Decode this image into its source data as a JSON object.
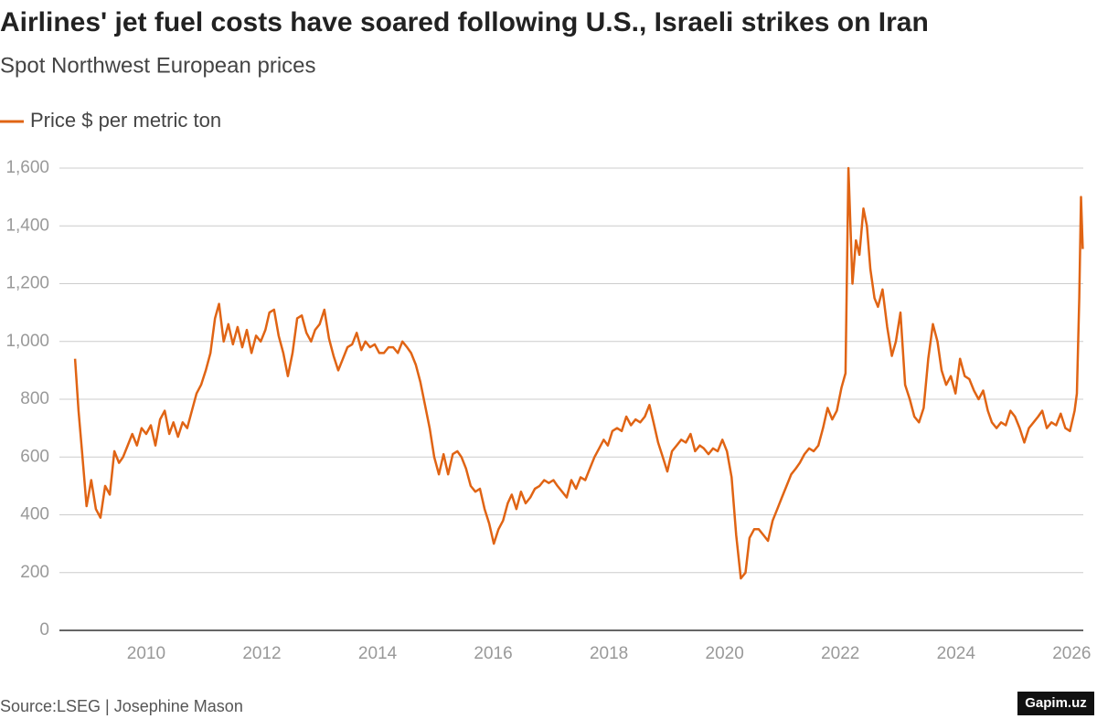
{
  "chart_data": {
    "type": "line",
    "title": "Airlines' jet fuel costs have soared following U.S., Israeli strikes on Iran",
    "subtitle": "Spot Northwest European prices",
    "source": "Source:LSEG | Josephine Mason",
    "watermark": "Gapim.uz",
    "grid": true,
    "legend": "top-left",
    "xlim": [
      2008.5,
      2026.2
    ],
    "xticks": [
      2010,
      2012,
      2014,
      2016,
      2018,
      2020,
      2022,
      2024,
      2026
    ],
    "ylim": [
      0,
      1600
    ],
    "yticks": [
      0,
      200,
      400,
      600,
      800,
      {
        "value": 1000,
        "label": "1,000"
      },
      {
        "value": 1200,
        "label": "1,200"
      },
      {
        "value": 1400,
        "label": "1,400"
      },
      {
        "value": 1600,
        "label": "1,600"
      }
    ],
    "series": [
      {
        "name": "Price $ per metric ton",
        "color": "#e06414",
        "x": [
          2008.77,
          2008.83,
          2008.89,
          2008.97,
          2009.05,
          2009.13,
          2009.21,
          2009.29,
          2009.37,
          2009.45,
          2009.53,
          2009.6,
          2009.68,
          2009.76,
          2009.84,
          2009.92,
          2010.0,
          2010.08,
          2010.16,
          2010.24,
          2010.32,
          2010.4,
          2010.47,
          2010.55,
          2010.63,
          2010.71,
          2010.79,
          2010.87,
          2010.95,
          2011.03,
          2011.11,
          2011.19,
          2011.26,
          2011.34,
          2011.42,
          2011.5,
          2011.58,
          2011.66,
          2011.74,
          2011.82,
          2011.9,
          2011.98,
          2012.06,
          2012.13,
          2012.21,
          2012.29,
          2012.37,
          2012.45,
          2012.53,
          2012.61,
          2012.69,
          2012.77,
          2012.85,
          2012.92,
          2013.0,
          2013.08,
          2013.16,
          2013.24,
          2013.32,
          2013.4,
          2013.48,
          2013.56,
          2013.64,
          2013.72,
          2013.79,
          2013.87,
          2013.95,
          2014.03,
          2014.11,
          2014.19,
          2014.27,
          2014.35,
          2014.43,
          2014.51,
          2014.58,
          2014.66,
          2014.74,
          2014.82,
          2014.9,
          2014.98,
          2015.06,
          2015.14,
          2015.22,
          2015.3,
          2015.38,
          2015.45,
          2015.53,
          2015.61,
          2015.69,
          2015.77,
          2015.85,
          2015.93,
          2016.01,
          2016.09,
          2016.17,
          2016.25,
          2016.32,
          2016.4,
          2016.48,
          2016.56,
          2016.64,
          2016.72,
          2016.8,
          2016.88,
          2016.96,
          2017.04,
          2017.11,
          2017.19,
          2017.27,
          2017.35,
          2017.43,
          2017.51,
          2017.59,
          2017.67,
          2017.75,
          2017.83,
          2017.91,
          2017.98,
          2018.06,
          2018.14,
          2018.22,
          2018.3,
          2018.38,
          2018.46,
          2018.54,
          2018.62,
          2018.7,
          2018.77,
          2018.85,
          2018.93,
          2019.01,
          2019.09,
          2019.17,
          2019.25,
          2019.33,
          2019.41,
          2019.49,
          2019.57,
          2019.64,
          2019.72,
          2019.8,
          2019.88,
          2019.96,
          2020.04,
          2020.12,
          2020.2,
          2020.28,
          2020.36,
          2020.43,
          2020.51,
          2020.59,
          2020.67,
          2020.75,
          2020.83,
          2020.91,
          2020.99,
          2021.07,
          2021.15,
          2021.23,
          2021.3,
          2021.38,
          2021.46,
          2021.54,
          2021.62,
          2021.7,
          2021.78,
          2021.86,
          2021.94,
          2022.02,
          2022.09,
          2022.14,
          2022.21,
          2022.27,
          2022.33,
          2022.4,
          2022.46,
          2022.52,
          2022.59,
          2022.65,
          2022.73,
          2022.81,
          2022.89,
          2022.96,
          2023.04,
          2023.12,
          2023.2,
          2023.28,
          2023.36,
          2023.44,
          2023.52,
          2023.6,
          2023.68,
          2023.75,
          2023.83,
          2023.91,
          2023.99,
          2024.07,
          2024.15,
          2024.23,
          2024.31,
          2024.39,
          2024.47,
          2024.55,
          2024.62,
          2024.7,
          2024.78,
          2024.86,
          2024.94,
          2025.02,
          2025.1,
          2025.18,
          2025.26,
          2025.34,
          2025.42,
          2025.49,
          2025.57,
          2025.65,
          2025.73,
          2025.81,
          2025.89,
          2025.97,
          2026.05,
          2026.09,
          2026.13,
          2026.16,
          2026.19
        ],
        "values": [
          940,
          760,
          620,
          430,
          520,
          420,
          390,
          500,
          470,
          620,
          580,
          600,
          640,
          680,
          640,
          700,
          680,
          710,
          640,
          730,
          760,
          680,
          720,
          670,
          720,
          700,
          760,
          820,
          850,
          900,
          960,
          1080,
          1130,
          1000,
          1060,
          990,
          1050,
          980,
          1040,
          960,
          1020,
          1000,
          1040,
          1100,
          1110,
          1020,
          960,
          880,
          960,
          1080,
          1090,
          1030,
          1000,
          1040,
          1060,
          1110,
          1010,
          950,
          900,
          940,
          980,
          990,
          1030,
          970,
          1000,
          980,
          990,
          960,
          960,
          980,
          980,
          960,
          1000,
          980,
          960,
          920,
          860,
          780,
          700,
          600,
          540,
          610,
          540,
          610,
          620,
          600,
          560,
          500,
          480,
          490,
          420,
          370,
          300,
          350,
          380,
          440,
          470,
          420,
          480,
          440,
          460,
          490,
          500,
          520,
          510,
          520,
          500,
          480,
          460,
          520,
          490,
          530,
          520,
          560,
          600,
          630,
          660,
          640,
          690,
          700,
          690,
          740,
          710,
          730,
          720,
          740,
          780,
          720,
          650,
          600,
          550,
          620,
          640,
          660,
          650,
          680,
          620,
          640,
          630,
          610,
          630,
          620,
          660,
          620,
          530,
          330,
          180,
          200,
          320,
          350,
          350,
          330,
          310,
          380,
          420,
          460,
          500,
          540,
          560,
          580,
          610,
          630,
          620,
          640,
          700,
          770,
          730,
          760,
          840,
          890,
          1600,
          1200,
          1350,
          1300,
          1460,
          1400,
          1250,
          1150,
          1120,
          1180,
          1050,
          950,
          1000,
          1100,
          850,
          800,
          740,
          720,
          770,
          940,
          1060,
          1000,
          900,
          850,
          880,
          820,
          940,
          880,
          870,
          830,
          800,
          830,
          760,
          720,
          700,
          720,
          710,
          760,
          740,
          700,
          650,
          700,
          720,
          740,
          760,
          700,
          720,
          710,
          750,
          700,
          690,
          760,
          820,
          1150,
          1500,
          1320
        ]
      }
    ]
  }
}
